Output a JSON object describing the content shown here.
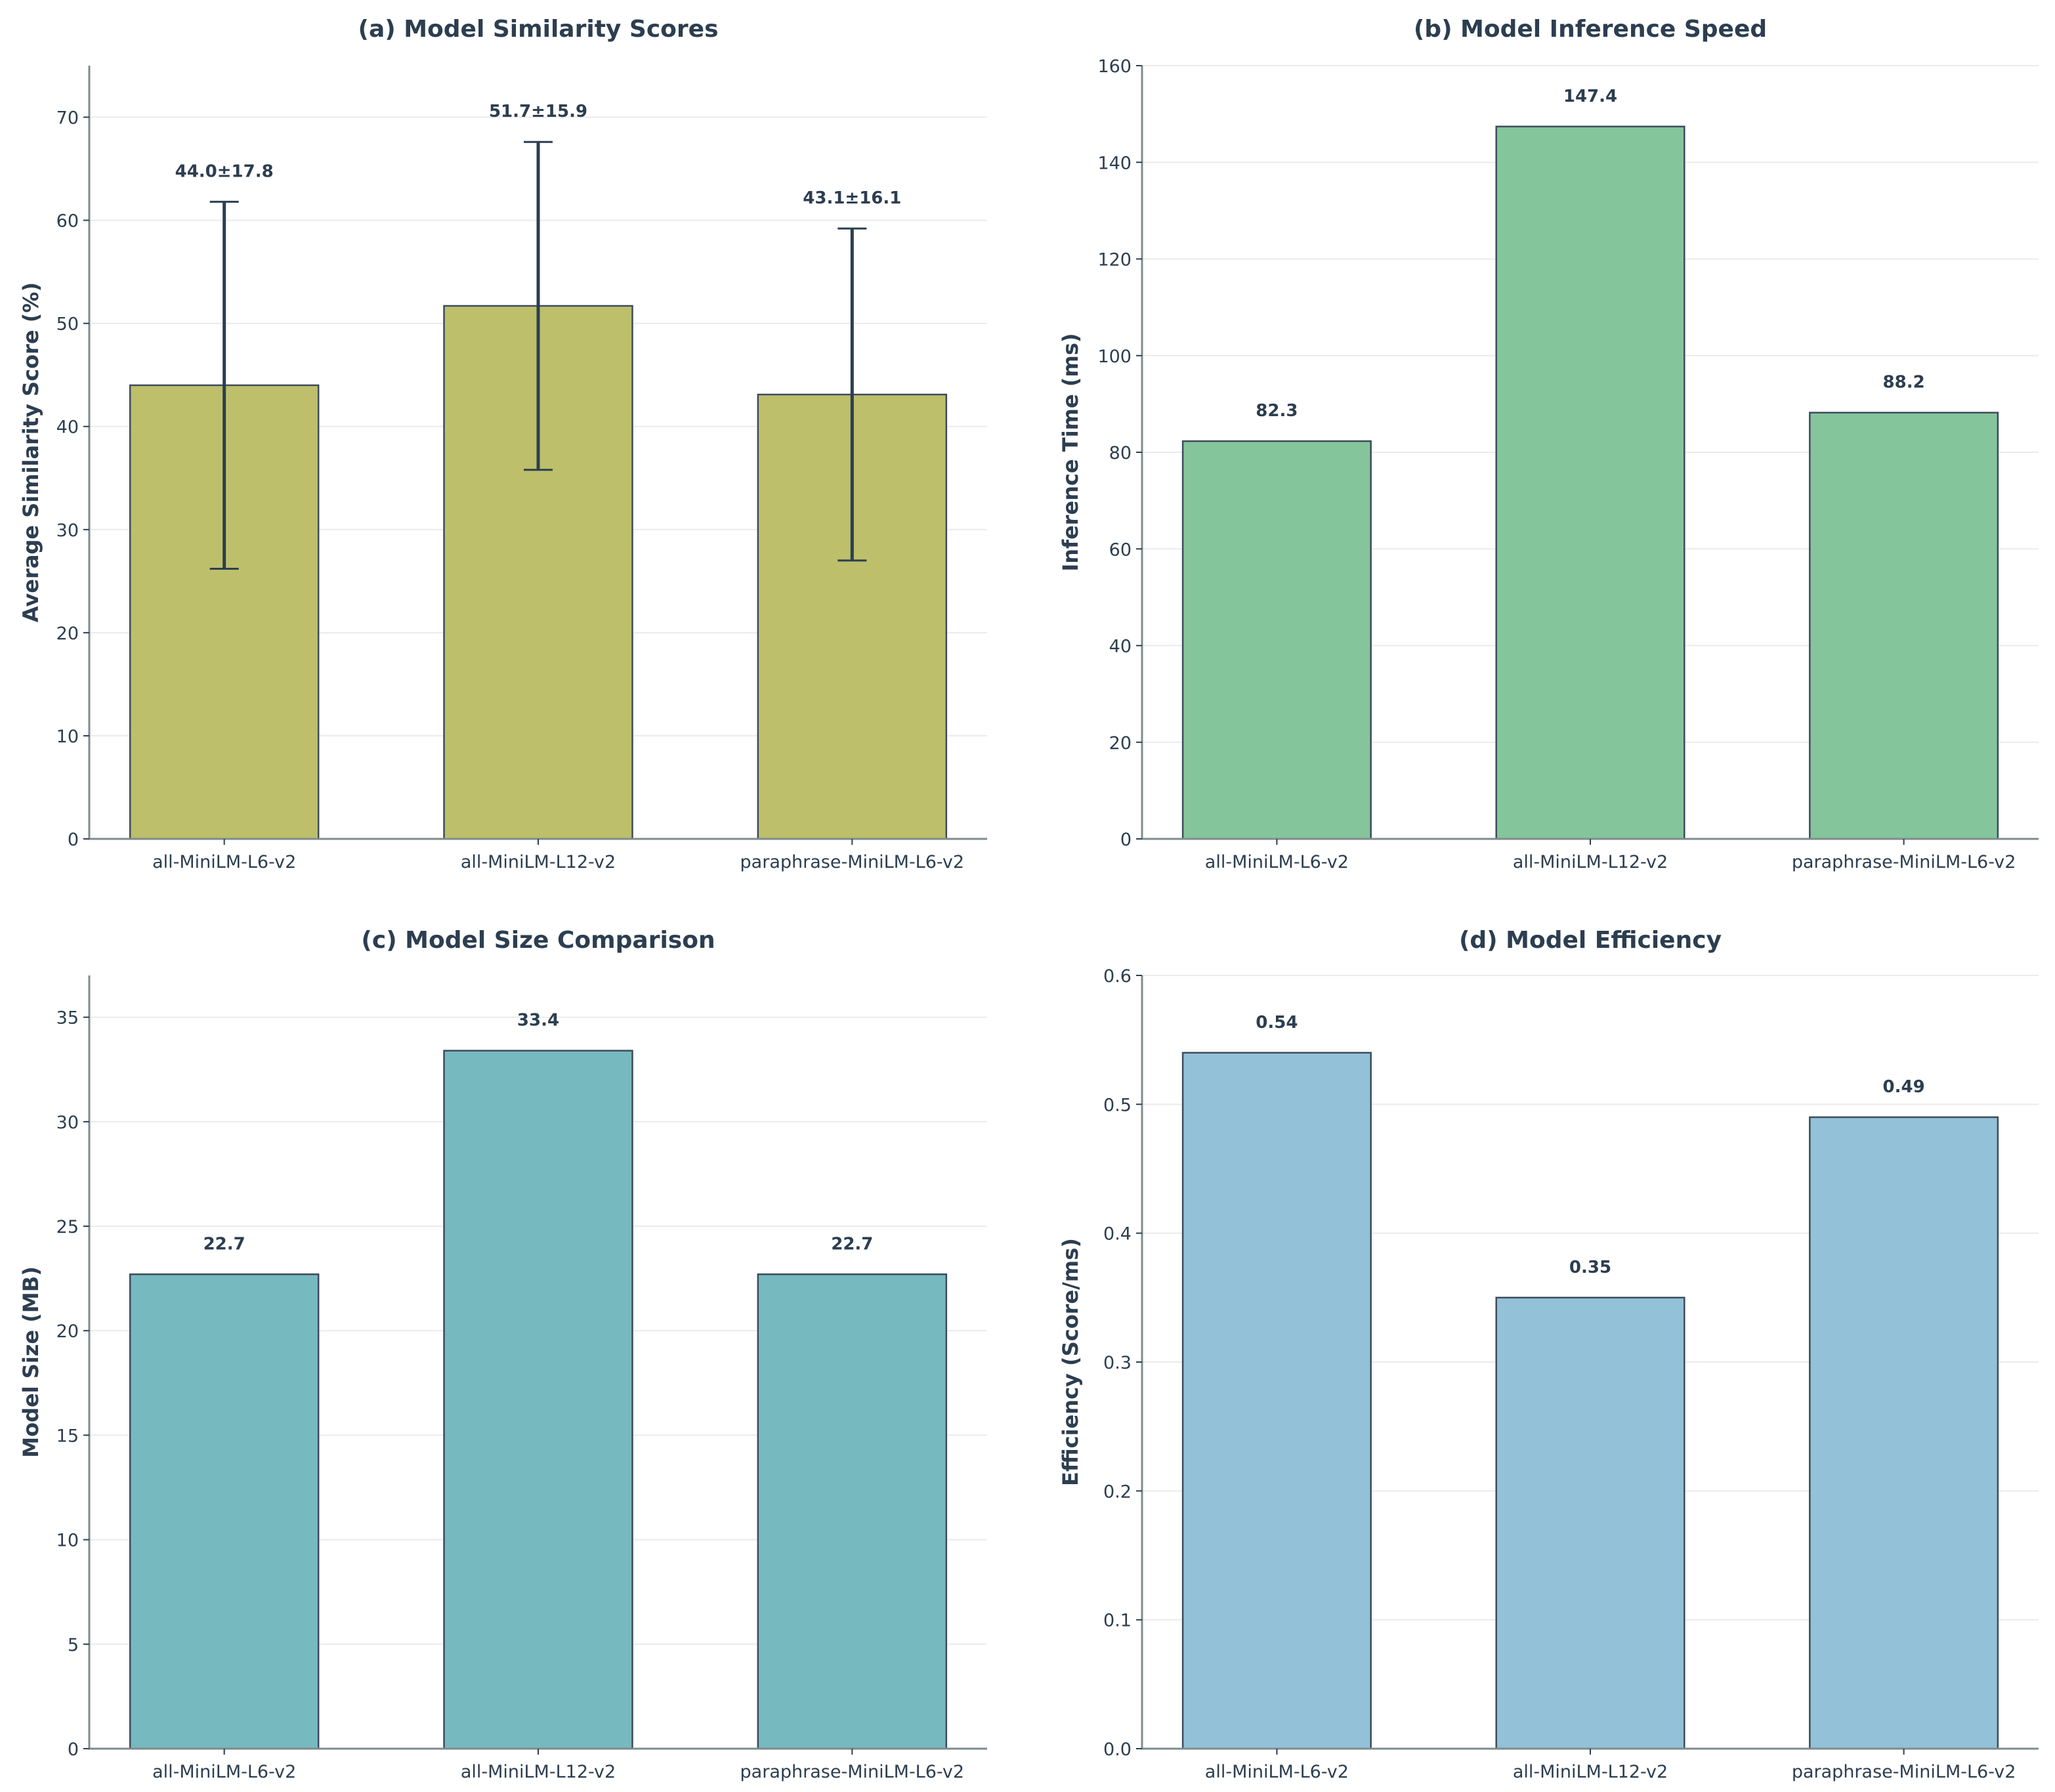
{
  "chart_data": [
    {
      "type": "bar",
      "title": "(a) Model Similarity Scores",
      "xlabel": "",
      "ylabel": "Average Similarity Score (%)",
      "categories": [
        "all-MiniLM-L6-v2",
        "all-MiniLM-L12-v2",
        "paraphrase-MiniLM-L6-v2"
      ],
      "values": [
        44.0,
        51.7,
        43.1
      ],
      "errors": [
        17.8,
        15.9,
        16.1
      ],
      "data_labels": [
        "44.0±17.8",
        "51.7±15.9",
        "43.1±16.1"
      ],
      "ylim": [
        0,
        75
      ],
      "yticks": [
        0,
        10,
        20,
        30,
        40,
        50,
        60,
        70
      ],
      "ytick_labels": [
        "0",
        "10",
        "20",
        "30",
        "40",
        "50",
        "60",
        "70"
      ],
      "grid": true,
      "color": "#bdbf6a"
    },
    {
      "type": "bar",
      "title": "(b) Model Inference Speed",
      "xlabel": "",
      "ylabel": "Inference Time (ms)",
      "categories": [
        "all-MiniLM-L6-v2",
        "all-MiniLM-L12-v2",
        "paraphrase-MiniLM-L6-v2"
      ],
      "values": [
        82.3,
        147.4,
        88.2
      ],
      "data_labels": [
        "82.3",
        "147.4",
        "88.2"
      ],
      "ylim": [
        0,
        160
      ],
      "yticks": [
        0,
        20,
        40,
        60,
        80,
        100,
        120,
        140,
        160
      ],
      "ytick_labels": [
        "0",
        "20",
        "40",
        "60",
        "80",
        "100",
        "120",
        "140",
        "160"
      ],
      "grid": true,
      "color": "#84c59b"
    },
    {
      "type": "bar",
      "title": "(c) Model Size Comparison",
      "xlabel": "",
      "ylabel": "Model Size (MB)",
      "categories": [
        "all-MiniLM-L6-v2",
        "all-MiniLM-L12-v2",
        "paraphrase-MiniLM-L6-v2"
      ],
      "values": [
        22.7,
        33.4,
        22.7
      ],
      "data_labels": [
        "22.7",
        "33.4",
        "22.7"
      ],
      "ylim": [
        0,
        37
      ],
      "yticks": [
        0,
        5,
        10,
        15,
        20,
        25,
        30,
        35
      ],
      "ytick_labels": [
        "0",
        "5",
        "10",
        "15",
        "20",
        "25",
        "30",
        "35"
      ],
      "grid": true,
      "color": "#76b9bf"
    },
    {
      "type": "bar",
      "title": "(d) Model Efficiency",
      "xlabel": "",
      "ylabel": "Efficiency (Score/ms)",
      "categories": [
        "all-MiniLM-L6-v2",
        "all-MiniLM-L12-v2",
        "paraphrase-MiniLM-L6-v2"
      ],
      "values": [
        0.54,
        0.35,
        0.49
      ],
      "data_labels": [
        "0.54",
        "0.35",
        "0.49"
      ],
      "ylim": [
        0,
        0.6
      ],
      "yticks": [
        0,
        0.1,
        0.2,
        0.3,
        0.4,
        0.5,
        0.6
      ],
      "ytick_labels": [
        "0.0",
        "0.1",
        "0.2",
        "0.3",
        "0.4",
        "0.5",
        "0.6"
      ],
      "grid": true,
      "color": "#92c1d8"
    }
  ]
}
